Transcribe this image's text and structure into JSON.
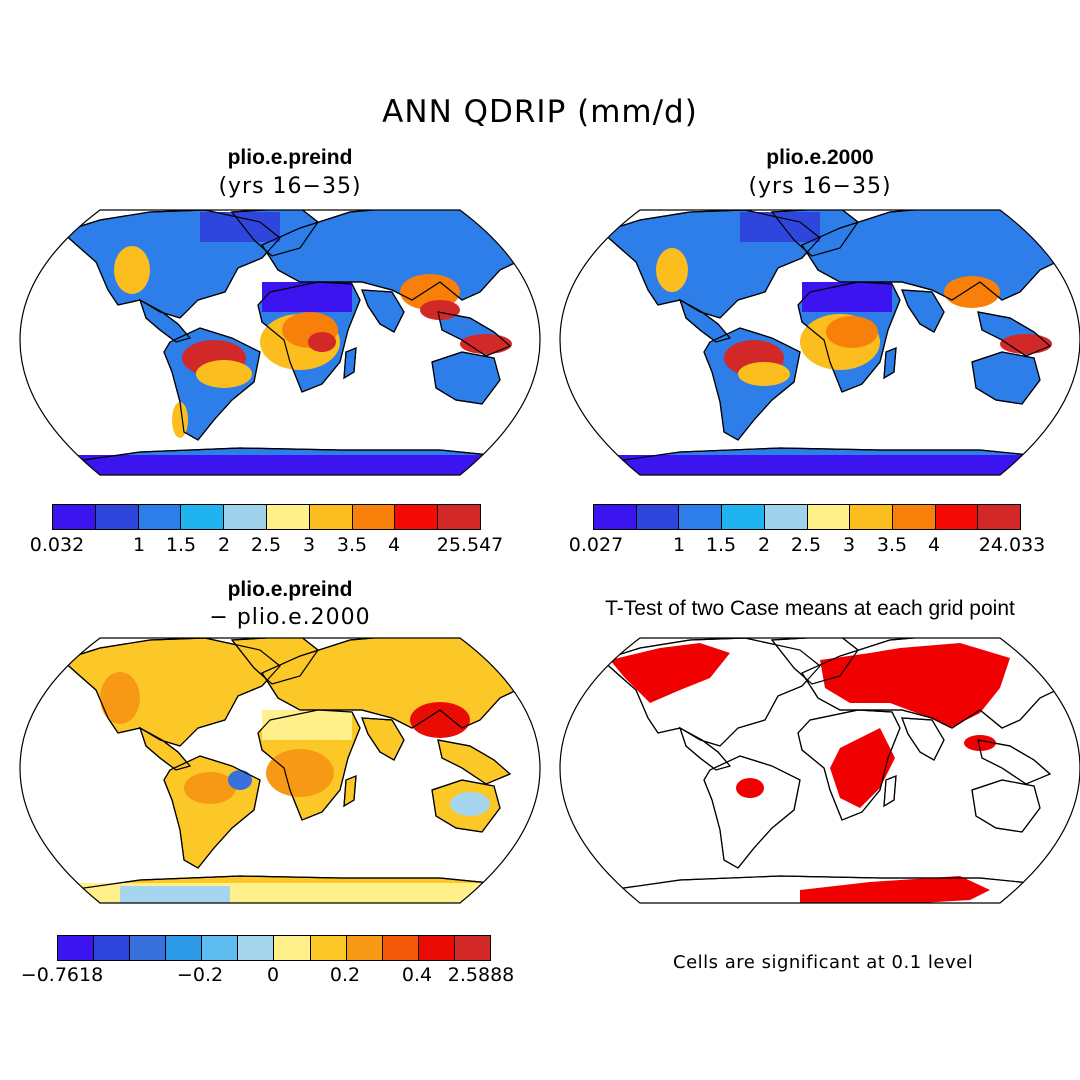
{
  "title": "ANN QDRIP (mm/d)",
  "panels": {
    "top_left": {
      "title": "plio.e.preind",
      "subtitle": "(yrs 16−35)"
    },
    "top_right": {
      "title": "plio.e.2000",
      "subtitle": "(yrs 16−35)"
    },
    "bottom_left": {
      "title": "plio.e.preind",
      "subtitle": "− plio.e.2000"
    },
    "bottom_right": {
      "title": "T-Test of two Case means at each grid point",
      "footnote": "Cells are significant at 0.1 level"
    }
  },
  "colorbars": {
    "abs_colors": [
      "#3c14f0",
      "#2e46dc",
      "#2d7ee8",
      "#1fb4f0",
      "#a0d2ec",
      "#fff08c",
      "#fbbe1e",
      "#f77f0a",
      "#f60a05",
      "#d22828"
    ],
    "diff_colors": [
      "#3c14f0",
      "#2e46dc",
      "#3870dc",
      "#2d9ae8",
      "#5ebcf0",
      "#a6d6ee",
      "#fff08c",
      "#fbc828",
      "#f79914",
      "#f55a0a",
      "#ea0b05",
      "#d22828"
    ],
    "top_left_ticks": [
      "0.032",
      "1",
      "1.5",
      "2",
      "2.5",
      "3",
      "3.5",
      "4",
      "25.547"
    ],
    "top_right_ticks": [
      "0.027",
      "1",
      "1.5",
      "2",
      "2.5",
      "3",
      "3.5",
      "4",
      "24.033"
    ],
    "bottom_left_ticks": [
      "−0.7618",
      "−0.2",
      "0",
      "0.2",
      "0.4",
      "2.5888"
    ]
  }
}
